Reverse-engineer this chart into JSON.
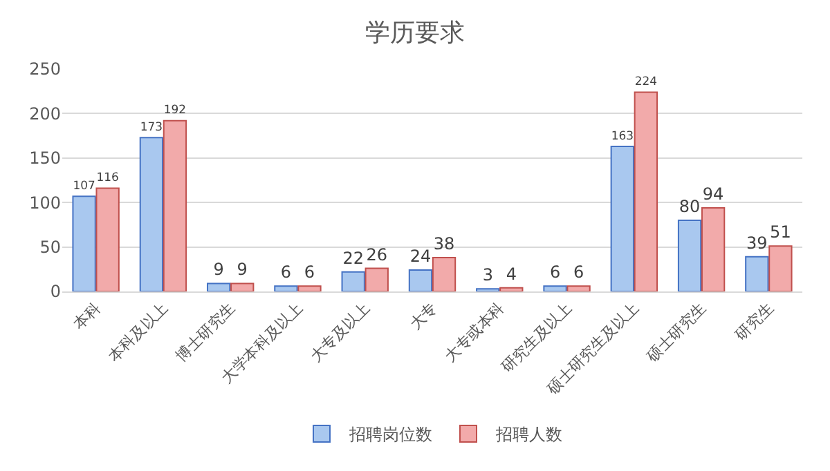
{
  "chart_data": {
    "type": "bar",
    "title": "学历要求",
    "categories": [
      "本科",
      "本科及以上",
      "博士研究生",
      "大学本科及以上",
      "大专及以上",
      "大专",
      "大专或本科",
      "研究生及以上",
      "硕士研究生及以上",
      "硕士研究生",
      "研究生"
    ],
    "series": [
      {
        "name": "招聘岗位数",
        "color": "#a9c8ef",
        "values": [
          107,
          173,
          9,
          6,
          22,
          24,
          3,
          6,
          163,
          80,
          39
        ]
      },
      {
        "name": "招聘人数",
        "color": "#f2aaaa",
        "values": [
          116,
          192,
          9,
          6,
          26,
          38,
          4,
          6,
          224,
          94,
          51
        ]
      }
    ],
    "ylim": [
      0,
      250
    ],
    "yticks": [
      0,
      50,
      100,
      150,
      200,
      250
    ],
    "grid": "y",
    "legend": "bottom",
    "data_labels": true
  }
}
